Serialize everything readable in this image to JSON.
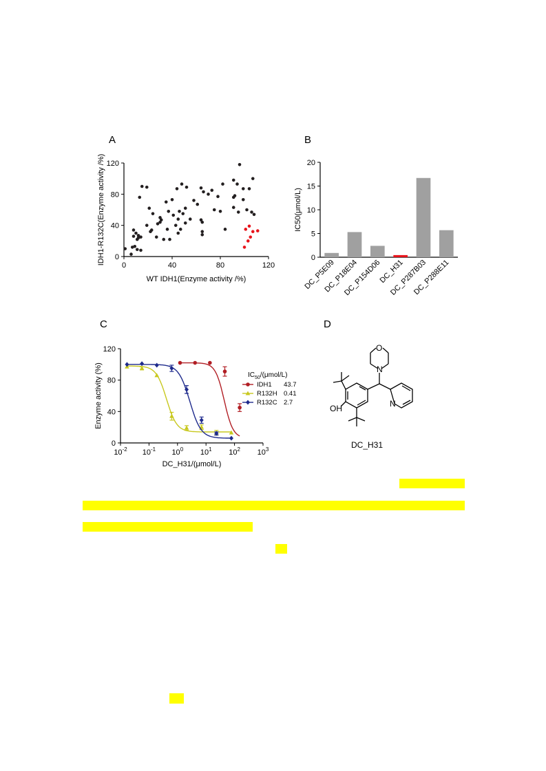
{
  "panels": {
    "a": {
      "letter": "A"
    },
    "b": {
      "letter": "B"
    },
    "c": {
      "letter": "C"
    },
    "d": {
      "letter": "D",
      "caption": "DC_H31",
      "atoms": {
        "oh": "OH",
        "n_morph": "N",
        "o_morph": "O",
        "n_pyr": "N"
      }
    }
  },
  "chart_data": [
    {
      "panel": "A",
      "type": "scatter",
      "xlabel": "WT IDH1(Enzyme activity /%)",
      "ylabel": "IDH1-R132C(Enzyme activity /%)",
      "xlim": [
        0,
        120
      ],
      "ylim": [
        0,
        120
      ],
      "xticks": [
        0,
        40,
        80,
        120
      ],
      "yticks": [
        0,
        40,
        80,
        120
      ],
      "colors": {
        "default": "#231f20",
        "highlight": "#e8141c"
      },
      "series": [
        {
          "points": [
            [
              1,
              10
            ],
            [
              6,
              3
            ],
            [
              7,
              12
            ],
            [
              8,
              26
            ],
            [
              8,
              34
            ],
            [
              9,
              13
            ],
            [
              10,
              30
            ],
            [
              11,
              9
            ],
            [
              11,
              22
            ],
            [
              12,
              24
            ],
            [
              12,
              27
            ],
            [
              13,
              76
            ],
            [
              14,
              8
            ],
            [
              14,
              25
            ],
            [
              15,
              90
            ],
            [
              19,
              89
            ],
            [
              19,
              40
            ],
            [
              21,
              62
            ],
            [
              22,
              32
            ],
            [
              23,
              34
            ],
            [
              24,
              55
            ],
            [
              27,
              25
            ],
            [
              28,
              42
            ],
            [
              30,
              44
            ],
            [
              30,
              50
            ],
            [
              31,
              47
            ],
            [
              33,
              22
            ],
            [
              35,
              70
            ],
            [
              36,
              35
            ],
            [
              37,
              58
            ],
            [
              38,
              22
            ],
            [
              40,
              73
            ],
            [
              41,
              53
            ],
            [
              43,
              40
            ],
            [
              44,
              87
            ],
            [
              45,
              48
            ],
            [
              45,
              30
            ],
            [
              46,
              58
            ],
            [
              47,
              35
            ],
            [
              48,
              93
            ],
            [
              49,
              55
            ],
            [
              51,
              43
            ],
            [
              51,
              62
            ],
            [
              52,
              89
            ],
            [
              55,
              48
            ],
            [
              58,
              72
            ],
            [
              61,
              67
            ],
            [
              64,
              47
            ],
            [
              64,
              88
            ],
            [
              65,
              44
            ],
            [
              65,
              32
            ],
            [
              65,
              28
            ],
            [
              66,
              83
            ],
            [
              70,
              80
            ],
            [
              73,
              85
            ],
            [
              75,
              60
            ],
            [
              78,
              77
            ],
            [
              80,
              58
            ],
            [
              82,
              93
            ],
            [
              84,
              35
            ],
            [
              91,
              98
            ],
            [
              91,
              76
            ],
            [
              91,
              63
            ],
            [
              92,
              78
            ],
            [
              94,
              93
            ],
            [
              95,
              57
            ],
            [
              96,
              118
            ],
            [
              99,
              87
            ],
            [
              99,
              73
            ],
            [
              102,
              60
            ],
            [
              104,
              87
            ],
            [
              106,
              57
            ],
            [
              107,
              100
            ],
            [
              108,
              54
            ]
          ]
        },
        {
          "highlight": true,
          "points": [
            [
              100,
              12
            ],
            [
              103,
              20
            ],
            [
              104,
              39
            ],
            [
              105,
              25
            ],
            [
              107,
              32
            ],
            [
              111,
              33
            ],
            [
              101,
              35
            ]
          ]
        }
      ]
    },
    {
      "panel": "B",
      "type": "bar",
      "ylabel": "IC50(μmol/L)",
      "ylim": [
        0,
        20
      ],
      "yticks": [
        0,
        5,
        10,
        15,
        20
      ],
      "categories": [
        "DC_P5E09",
        "DC_P18E04",
        "DC_P154D06",
        "DC_H31",
        "DC_P287B03",
        "DC_P288E11"
      ],
      "values": [
        0.9,
        5.3,
        2.4,
        0.45,
        16.7,
        5.7
      ],
      "colors": {
        "default": "#a0a0a0",
        "highlight": "#e8141c"
      },
      "highlight_index": 3
    },
    {
      "panel": "C",
      "type": "line",
      "xlabel": "DC_H31/(μmol/L)",
      "ylabel": "Enzyme activity (%)",
      "xscale": "log",
      "xlim": [
        0.01,
        1000
      ],
      "ylim": [
        0,
        120
      ],
      "xtick_labels": [
        [
          "10",
          "-2"
        ],
        [
          "10",
          "-1"
        ],
        [
          "10",
          "0"
        ],
        [
          "10",
          "1"
        ],
        [
          "10",
          "2"
        ],
        [
          "10",
          "3"
        ]
      ],
      "yticks": [
        0,
        40,
        80,
        120
      ],
      "legend": {
        "title": "IC",
        "title_sub": "50",
        "title_suffix": "/(μmol/L)",
        "placement": "right"
      },
      "series": [
        {
          "name": "IDH1",
          "ic50_label": "43.7",
          "color": "#b11e24",
          "marker": "circle",
          "x": [
            1.23,
            4.12,
            13.7,
            45.7,
            152
          ],
          "y": [
            102,
            102,
            102,
            91,
            45
          ],
          "err": [
            0,
            0,
            0,
            6,
            5
          ],
          "fit": {
            "top": 102,
            "bottom": 6,
            "ic50": 43.7,
            "hill": 2.8
          }
        },
        {
          "name": "R132H",
          "ic50_label": "0.41",
          "color": "#c8c81e",
          "marker": "triangle",
          "x": [
            0.0169,
            0.0564,
            0.188,
            0.627,
            2.09,
            6.97,
            23.2,
            77.4
          ],
          "y": [
            97,
            95,
            86,
            34,
            19,
            20,
            13,
            13
          ],
          "err": [
            0,
            2,
            0,
            5,
            3,
            3,
            3,
            0
          ],
          "fit": {
            "top": 98,
            "bottom": 14,
            "ic50": 0.41,
            "hill": 2.4
          }
        },
        {
          "name": "R132C",
          "ic50_label": "2.7",
          "color": "#1e2a8c",
          "marker": "diamond",
          "x": [
            0.0169,
            0.0564,
            0.188,
            0.627,
            2.09,
            6.97,
            23.2,
            77.4
          ],
          "y": [
            100,
            101,
            99,
            95,
            68,
            29,
            12,
            6
          ],
          "err": [
            0,
            0,
            0,
            4,
            5,
            4,
            2,
            0
          ],
          "fit": {
            "top": 100,
            "bottom": 6,
            "ic50": 2.7,
            "hill": 2.2
          }
        }
      ]
    }
  ]
}
